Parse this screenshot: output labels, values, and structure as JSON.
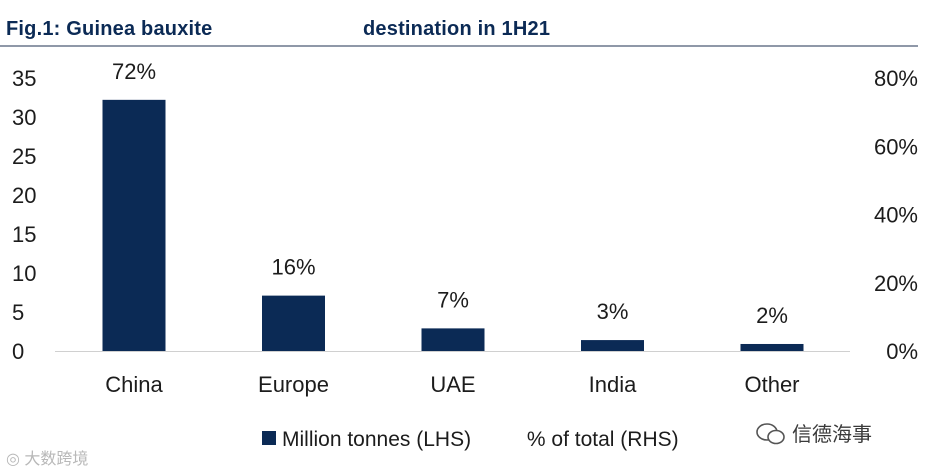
{
  "title_part1": "Fig.1: Guinea bauxite",
  "title_part2": "destination in 1H21",
  "chart_data": {
    "type": "bar",
    "title": "Fig.1: Guinea bauxite destination in 1H21",
    "categories": [
      "China",
      "Europe",
      "UAE",
      "India",
      "Other"
    ],
    "series": [
      {
        "name": "Million tonnes (LHS)",
        "axis": "left",
        "values": [
          32.2,
          7.1,
          2.9,
          1.4,
          0.9
        ]
      }
    ],
    "pct_labels": [
      "72%",
      "16%",
      "7%",
      "3%",
      "2%"
    ],
    "left_axis": {
      "min": 0,
      "max": 35,
      "ticks": [
        0,
        5,
        10,
        15,
        20,
        25,
        30,
        35
      ]
    },
    "right_axis": {
      "min": 0,
      "max": 80,
      "ticks": [
        0,
        20,
        40,
        60,
        80
      ],
      "tick_labels": [
        "0%",
        "20%",
        "40%",
        "60%",
        "80%"
      ]
    },
    "legend": [
      {
        "label": "Million tonnes (LHS)"
      },
      {
        "label": "% of total (RHS)"
      }
    ],
    "legend_position": "bottom",
    "bar_color": "#0b2a55"
  },
  "watermark_left": "大数跨境",
  "watermark_right": "信德海事",
  "watermark_left_icon": "logo-icon",
  "watermark_right_icon": "wechat-icon"
}
